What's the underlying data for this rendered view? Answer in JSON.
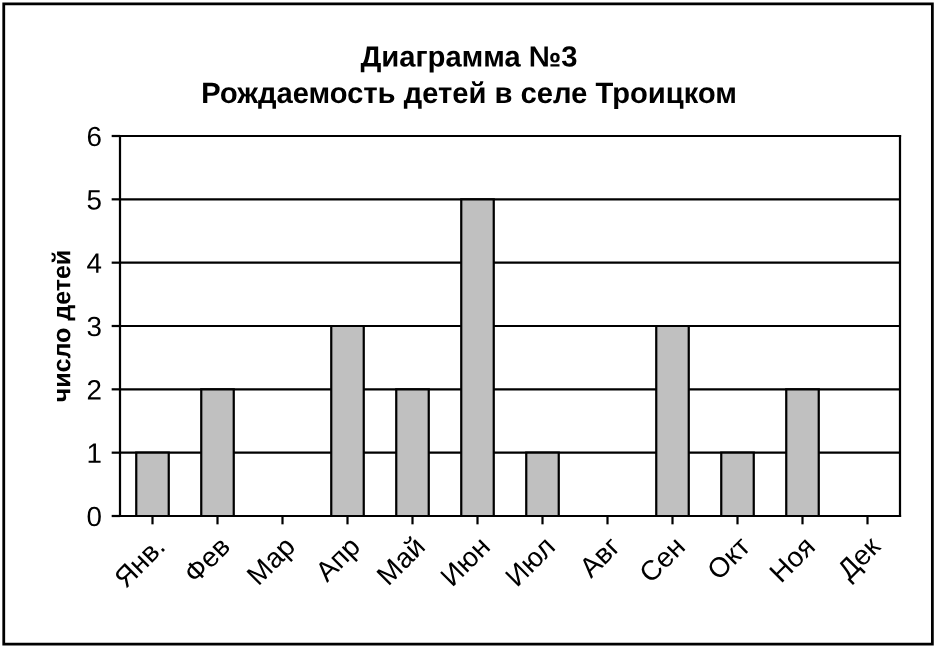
{
  "chart_data": {
    "type": "bar",
    "title": "Диаграмма №3\nРождаемость детей в селе Троицком",
    "ylabel": "число детей",
    "categories": [
      "Янв.",
      "Фев",
      "Мар",
      "Апр",
      "Май",
      "Июн",
      "Июл",
      "Авг",
      "Сен",
      "Окт",
      "Ноя",
      "Дек"
    ],
    "values": [
      1,
      2,
      0,
      3,
      2,
      5,
      1,
      0,
      3,
      1,
      2,
      0
    ],
    "color": "#c0c0c0",
    "ylim": [
      0,
      6
    ],
    "yticks": [
      0,
      1,
      2,
      3,
      4,
      5,
      6
    ],
    "grid": "y",
    "legend": false
  }
}
